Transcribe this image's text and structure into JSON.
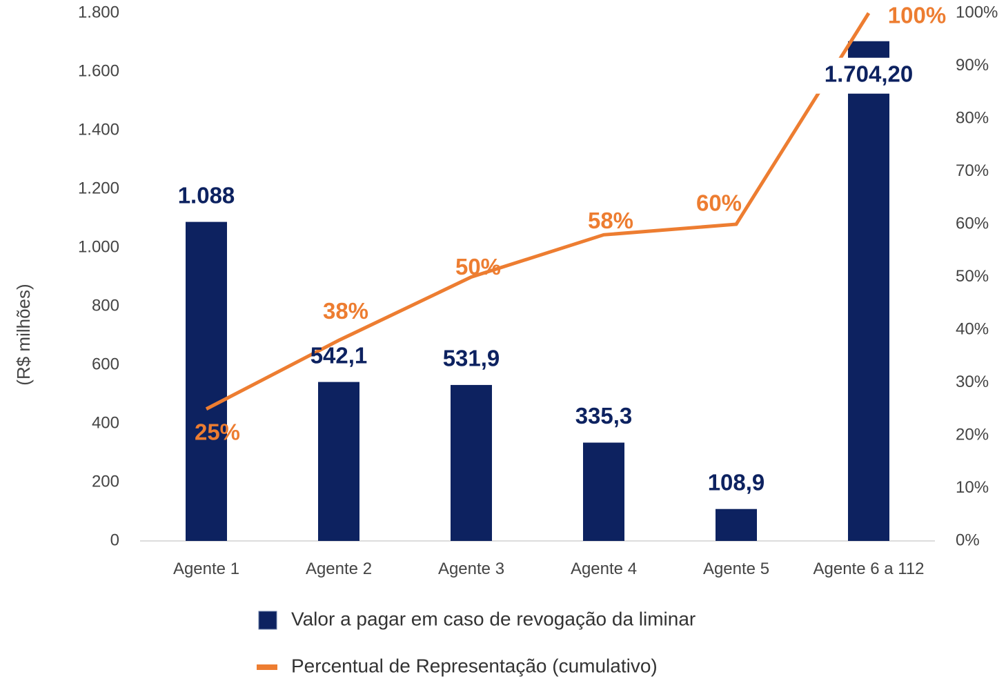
{
  "chart_data": {
    "type": "bar_line",
    "y_axis_label": "(R$ milhões)",
    "categories": [
      "Agente 1",
      "Agente 2",
      "Agente 3",
      "Agente 4",
      "Agente 5",
      "Agente 6 a 112"
    ],
    "series": [
      {
        "name": "Valor a pagar em caso de revogação da liminar",
        "type": "bar",
        "color": "#0d2260",
        "values": [
          1088,
          542.1,
          531.9,
          335.3,
          108.9,
          1704.2
        ],
        "value_labels": [
          "1.088",
          "542,1",
          "531,9",
          "335,3",
          "108,9",
          "1.704,20"
        ]
      },
      {
        "name": "Percentual de Representação (cumulativo)",
        "type": "line",
        "axis": "y2",
        "color": "#ed7d31",
        "values": [
          25,
          38,
          50,
          58,
          60,
          100
        ],
        "value_labels": [
          "25%",
          "38%",
          "50%",
          "58%",
          "60%",
          "100%"
        ]
      }
    ],
    "ylim": [
      0,
      1800
    ],
    "yticks": [
      0,
      200,
      400,
      600,
      800,
      {
        "value": 1000,
        "label": "1.000"
      },
      {
        "value": 1200,
        "label": "1.200"
      },
      {
        "value": 1400,
        "label": "1.400"
      },
      {
        "value": 1600,
        "label": "1.600"
      },
      {
        "value": 1800,
        "label": "1.800"
      }
    ],
    "y2lim": [
      0,
      100
    ],
    "y2ticks": [
      {
        "value": 0,
        "label": "0%"
      },
      {
        "value": 10,
        "label": "10%"
      },
      {
        "value": 20,
        "label": "20%"
      },
      {
        "value": 30,
        "label": "30%"
      },
      {
        "value": 40,
        "label": "40%"
      },
      {
        "value": 50,
        "label": "50%"
      },
      {
        "value": 60,
        "label": "60%"
      },
      {
        "value": 70,
        "label": "70%"
      },
      {
        "value": 80,
        "label": "80%"
      },
      {
        "value": 90,
        "label": "90%"
      },
      {
        "value": 100,
        "label": "100%"
      }
    ],
    "grid": false,
    "legend": "bottom"
  }
}
